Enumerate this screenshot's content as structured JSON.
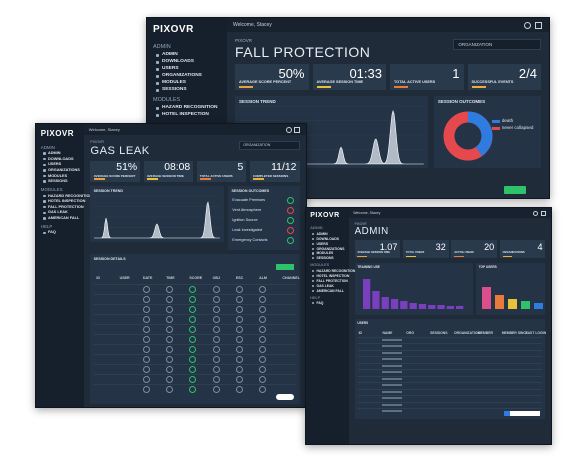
{
  "back": {
    "logo": "PIXOVR",
    "greeting": "Welcome, Stacey",
    "nav_heading": "ADMIN",
    "nav": [
      "ADMIN",
      "DOWNLOADS",
      "USERS",
      "ORGANIZATIONS",
      "MODULES",
      "SESSIONS"
    ],
    "nav_heading_2": "MODULES",
    "nav_2": [
      "HAZARD RECOGNITION",
      "HOTEL INSPECTION"
    ],
    "kicker": "PIXOVR",
    "title": "FALL PROTECTION",
    "filter": "ORGANIZATION",
    "stats": [
      {
        "value": "50%",
        "label": "AVERAGE SCORE PERCENT"
      },
      {
        "value": "01:33",
        "label": "AVERAGE SESSION TIME"
      },
      {
        "value": "1",
        "label": "TOTAL ACTIVE USERS"
      },
      {
        "value": "2/4",
        "label": "SUCCESSFUL EVENTS"
      }
    ],
    "panels": [
      "SESSION TREND",
      "SESSION OUTCOMES"
    ],
    "legend": [
      "death",
      "never collapsed"
    ]
  },
  "middle": {
    "logo": "PIXOVR",
    "greeting": "Welcome, Stacey",
    "nav_heading": "ADMIN",
    "nav": [
      "ADMIN",
      "DOWNLOADS",
      "USERS",
      "ORGANIZATIONS",
      "MODULES",
      "SESSIONS"
    ],
    "nav_heading_2": "MODULES",
    "nav_2": [
      "HAZARD RECOGNITION",
      "HOTEL INSPECTION",
      "FALL PROTECTION",
      "GAS LEAK",
      "AMERICAN FALL"
    ],
    "nav_heading_3": "HELP",
    "nav_3": [
      "FAQ"
    ],
    "kicker": "PIXOVR",
    "title": "GAS LEAK",
    "filter": "ORGANIZATION",
    "stats": [
      {
        "value": "51%",
        "label": "AVERAGE SCORE PERCENT"
      },
      {
        "value": "08:08",
        "label": "AVERAGE SESSION TIME"
      },
      {
        "value": "5",
        "label": "TOTAL ACTIVE USERS"
      },
      {
        "value": "11/12",
        "label": "COMPLETED SESSIONS"
      }
    ],
    "panels": [
      "SESSION TREND",
      "SESSION OUTCOMES",
      "SESSION DETAILS"
    ],
    "outcomes": [
      "Evacuate Premises",
      "Vent Atmosphere",
      "Ignition Source",
      "Leak Investigated",
      "Emergency Contacts"
    ],
    "table_header": [
      "ID",
      "USER",
      "DATE",
      "TIME",
      "SCORE",
      "OBJ",
      "ESC",
      "ALM",
      "CHANNEL"
    ]
  },
  "front": {
    "logo": "PIXOVR",
    "greeting": "Welcome, Stacey",
    "nav_heading": "ADMIN",
    "nav": [
      "ADMIN",
      "DOWNLOADS",
      "USERS",
      "ORGANIZATIONS",
      "MODULES",
      "SESSIONS"
    ],
    "nav_heading_2": "MODULES",
    "nav_2": [
      "HAZARD RECOGNITION",
      "HOTEL INSPECTION",
      "FALL PROTECTION",
      "GAS LEAK",
      "AMERICAN FALL"
    ],
    "nav_heading_3": "HELP",
    "nav_3": [
      "FAQ"
    ],
    "kicker": "PIXOVR",
    "title": "ADMIN",
    "stats": [
      {
        "value": "1.07",
        "label": "AVERAGE SESSION TIME"
      },
      {
        "value": "32",
        "label": "TOTAL USERS"
      },
      {
        "value": "20",
        "label": "ACTIVE USERS"
      },
      {
        "value": "4",
        "label": "ORGANIZATIONS"
      }
    ],
    "panels": [
      "TRAINING USE",
      "TOP USERS",
      "USERS"
    ],
    "table_header": [
      "ID",
      "NAME",
      "ORG",
      "SESSIONS",
      "ORGANIZATION",
      "MEMBER",
      "MEMBER SINCE",
      "LAST LOGIN"
    ]
  }
}
